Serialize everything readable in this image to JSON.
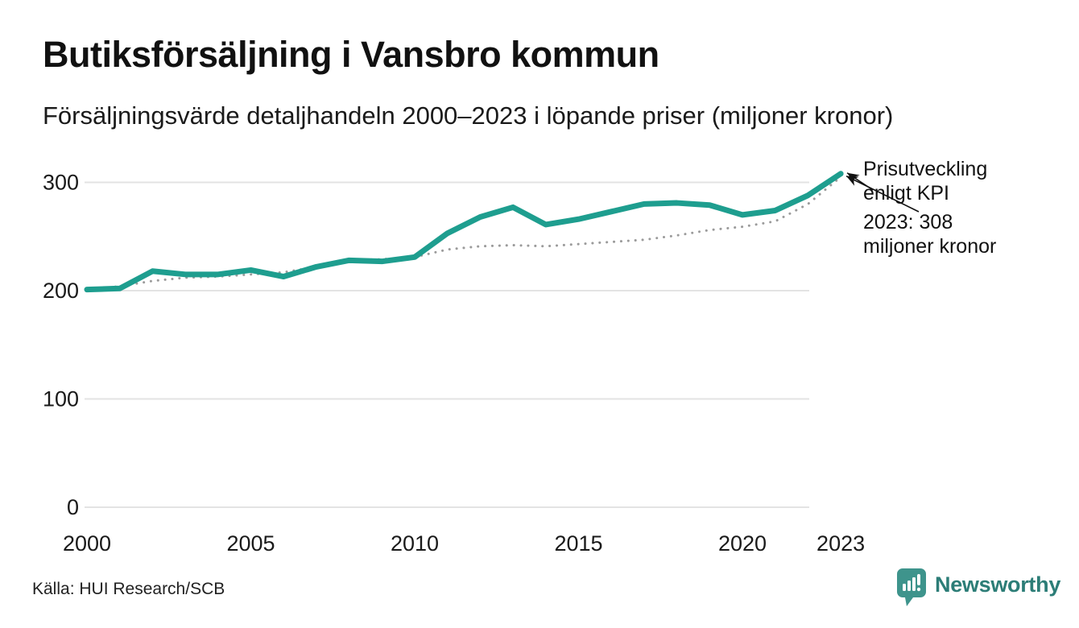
{
  "header": {
    "title": "Butiksförsäljning i Vansbro kommun",
    "subtitle": "Försäljningsvärde detaljhandeln 2000–2023 i löpande priser (miljoner kronor)"
  },
  "annotation": {
    "kpi_label": "Prisutveckling enligt KPI",
    "value_label": "2023: 308 miljoner kronor"
  },
  "footer": {
    "source": "Källa: HUI Research/SCB",
    "brand": "Newsworthy"
  },
  "colors": {
    "sales_line": "#1E9E8F",
    "kpi_line": "#9b9b9b",
    "grid": "#e3e3e3",
    "axis_text": "#1a1a1a",
    "arrow": "#111111",
    "brand_icon": "#3E948C",
    "brand_text": "#2C7D77"
  },
  "chart_data": {
    "type": "line",
    "title": "Butiksförsäljning i Vansbro kommun",
    "subtitle": "Försäljningsvärde detaljhandeln 2000–2023 i löpande priser (miljoner kronor)",
    "xlabel": "",
    "ylabel": "miljoner kronor",
    "x": [
      2000,
      2001,
      2002,
      2003,
      2004,
      2005,
      2006,
      2007,
      2008,
      2009,
      2010,
      2011,
      2012,
      2013,
      2014,
      2015,
      2016,
      2017,
      2018,
      2019,
      2020,
      2021,
      2022,
      2023
    ],
    "series": [
      {
        "name": "Försäljningsvärde i löpande priser",
        "style": "solid",
        "color": "#1E9E8F",
        "values": [
          201,
          202,
          218,
          215,
          215,
          219,
          213,
          222,
          228,
          227,
          231,
          253,
          268,
          277,
          261,
          266,
          273,
          280,
          281,
          279,
          270,
          274,
          288,
          308
        ]
      },
      {
        "name": "Prisutveckling enligt KPI",
        "style": "dotted",
        "color": "#9b9b9b",
        "values": [
          201,
          204,
          209,
          212,
          213,
          215,
          217,
          222,
          228,
          229,
          231,
          238,
          241,
          242,
          241,
          243,
          245,
          247,
          251,
          256,
          259,
          264,
          280,
          305
        ]
      }
    ],
    "ylim": [
      0,
      320
    ],
    "y_ticks": [
      0,
      100,
      200,
      300
    ],
    "x_ticks": [
      2000,
      2005,
      2010,
      2015,
      2020,
      2023
    ],
    "grid": "horizontal",
    "legend_position": "none",
    "annotations": [
      {
        "text": "Prisutveckling enligt KPI",
        "points_to": "2023 end of KPI line"
      },
      {
        "text": "2023: 308 miljoner kronor",
        "points_to": "2023 end of sales line"
      }
    ]
  }
}
